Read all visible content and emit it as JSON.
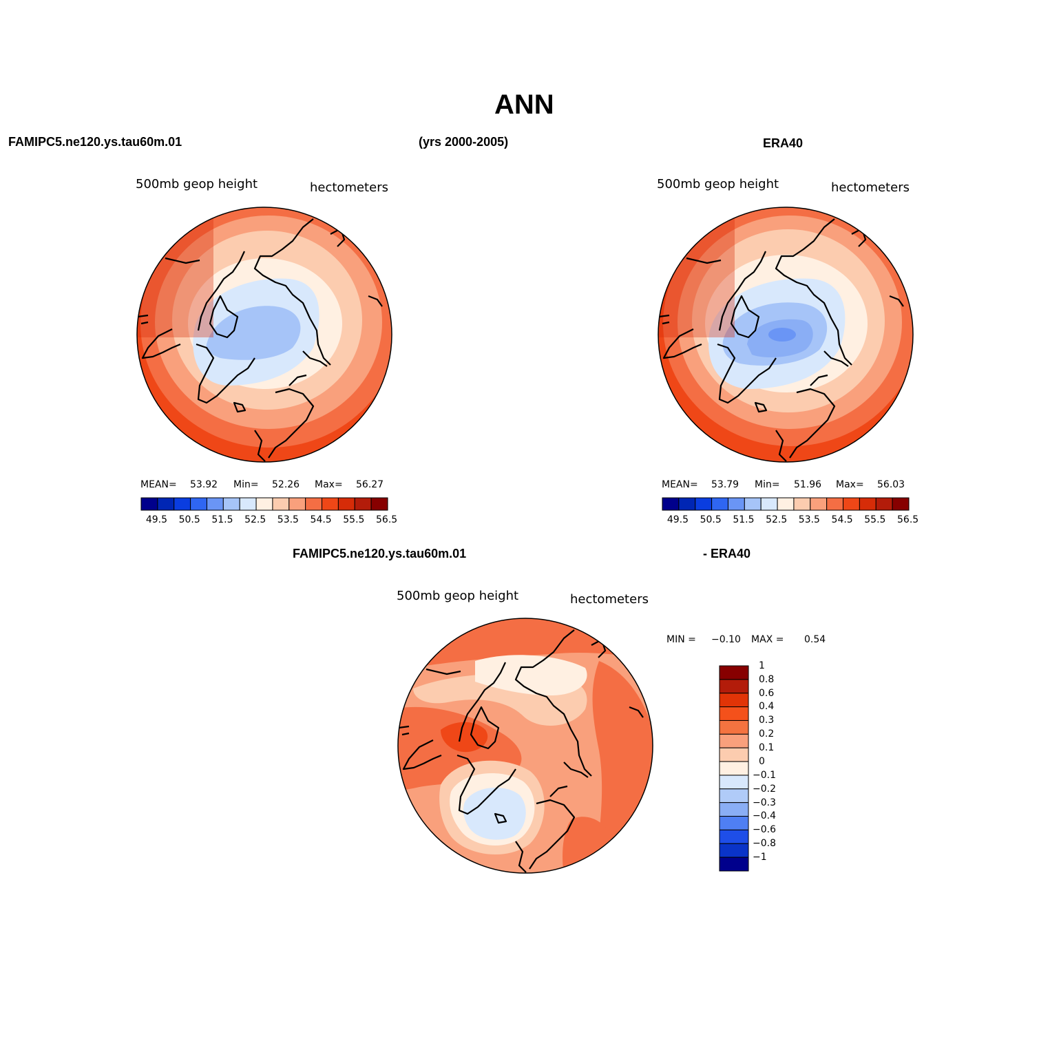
{
  "title": "ANN",
  "header": {
    "model": "FAMIPC5.ne120.ys.tau60m.01",
    "years": "(yrs 2000-2005)",
    "obs": "ERA40"
  },
  "diff_header": {
    "model": "FAMIPC5.ne120.ys.tau60m.01",
    "obs": "- ERA40"
  },
  "panels": {
    "model": {
      "field": "500mb  geop  height",
      "units": "hectometers",
      "stats": {
        "mean_label": "MEAN=",
        "mean": "53.92",
        "min_label": "Min=",
        "min": "52.26",
        "max_label": "Max=",
        "max": "56.27"
      }
    },
    "obs": {
      "field": "500mb  geop  height",
      "units": "hectometers",
      "stats": {
        "mean_label": "MEAN=",
        "mean": "53.79",
        "min_label": "Min=",
        "min": "51.96",
        "max_label": "Max=",
        "max": "56.03"
      }
    },
    "diff": {
      "field": "500mb  geop  height",
      "units": "hectometers",
      "stats": {
        "min_label": "MIN =",
        "min": "−0.10",
        "max_label": "MAX =",
        "max": "0.54"
      }
    }
  },
  "colorbar_abs": {
    "colors": [
      "#00008c",
      "#0026b4",
      "#0a3de0",
      "#2f66f2",
      "#6a95f5",
      "#a6c4f8",
      "#d8e8fc",
      "#fff0e2",
      "#fcccaf",
      "#f9a07c",
      "#f46e44",
      "#ef4717",
      "#d62c08",
      "#b31c0a",
      "#870000"
    ],
    "labels": [
      "49.5",
      "50.5",
      "51.5",
      "52.5",
      "53.5",
      "54.5",
      "55.5",
      "56.5"
    ]
  },
  "colorbar_diff": {
    "colors": [
      "#870000",
      "#b31c0a",
      "#e13407",
      "#f4511b",
      "#f47340",
      "#f9a07c",
      "#fcccaf",
      "#fff0e2",
      "#d8e8fc",
      "#b0cbf8",
      "#8aaef5",
      "#4f7ff3",
      "#1e4ee8",
      "#0a34c8",
      "#00008c"
    ],
    "labels": [
      "1",
      "0.8",
      "0.6",
      "0.4",
      "0.3",
      "0.2",
      "0.1",
      "0",
      "−0.1",
      "−0.2",
      "−0.3",
      "−0.4",
      "−0.6",
      "−0.8",
      "−1"
    ]
  }
}
